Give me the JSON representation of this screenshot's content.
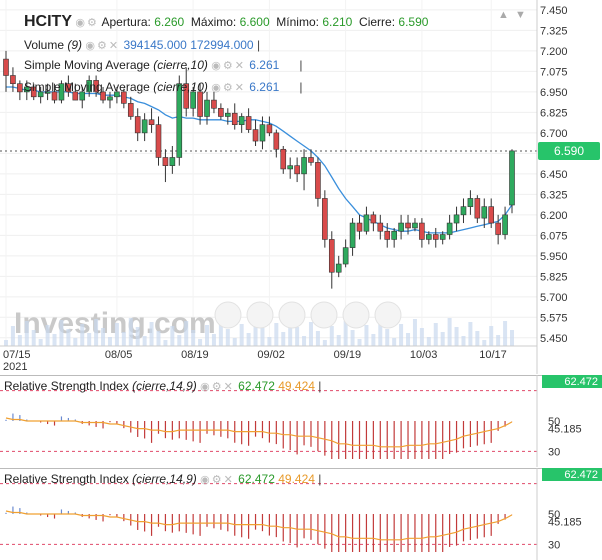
{
  "header": {
    "ticker": "HCITY",
    "open_label": "Apertura:",
    "open": "6.260",
    "high_label": "Máximo:",
    "high": "6.600",
    "low_label": "Mínimo:",
    "low": "6.210",
    "close_label": "Cierre:",
    "close": "6.590"
  },
  "volume": {
    "label": "Volume",
    "param": "(9)",
    "v1": "394145.000",
    "v2": "172994.000"
  },
  "sma1": {
    "label": "Simple Moving Average",
    "param": "(cierre,10)",
    "value": "6.261"
  },
  "sma2": {
    "label": "Simple Moving Average",
    "param": "(cierre,10)",
    "value": "6.261"
  },
  "rsi1": {
    "label": "Relative Strength Index",
    "param": "(cierre,14,9)",
    "v1": "62.472",
    "v2": "49.424",
    "badge": "62.472",
    "ticks": [
      "50",
      "45.185",
      "30"
    ]
  },
  "rsi2": {
    "label": "Relative Strength Index",
    "param": "(cierre,14,9)",
    "v1": "62.472",
    "v2": "49.424",
    "badge": "62.472",
    "ticks": [
      "50",
      "45.185",
      "30"
    ]
  },
  "price_badge": "6.590",
  "watermark": "Investing.com",
  "icons": [
    "eye-icon",
    "gear-icon",
    "close-icon",
    "arrow-up-icon",
    "arrow-down-icon"
  ],
  "colors": {
    "up": "#2eaa5e",
    "down": "#d94b4b",
    "sma": "#3a8fdc",
    "rsi_signal": "#f0a030",
    "badge": "#27c46a"
  },
  "chart_data": {
    "type": "candlestick",
    "y_ticks": [
      "7.450",
      "7.325",
      "7.200",
      "7.075",
      "6.950",
      "6.825",
      "6.700",
      "6.575",
      "6.450",
      "6.325",
      "6.200",
      "6.075",
      "5.950",
      "5.825",
      "5.700",
      "5.575",
      "5.450"
    ],
    "x_ticks": [
      "07/15",
      "08/05",
      "08/19",
      "09/02",
      "09/19",
      "10/03",
      "10/17"
    ],
    "x_year": "2021",
    "ylim": [
      5.4,
      7.48
    ],
    "candles": [
      [
        7.15,
        7.2,
        6.95,
        7.05
      ],
      [
        7.05,
        7.1,
        6.95,
        7.0
      ],
      [
        7.0,
        7.02,
        6.9,
        6.95
      ],
      [
        6.95,
        7.02,
        6.9,
        6.98
      ],
      [
        6.98,
        7.0,
        6.9,
        6.92
      ],
      [
        6.92,
        6.98,
        6.88,
        6.95
      ],
      [
        6.95,
        7.0,
        6.9,
        6.95
      ],
      [
        6.95,
        7.0,
        6.88,
        6.9
      ],
      [
        6.9,
        7.02,
        6.88,
        7.0
      ],
      [
        7.0,
        7.05,
        6.92,
        6.95
      ],
      [
        6.95,
        7.0,
        6.9,
        6.9
      ],
      [
        6.9,
        6.98,
        6.85,
        6.95
      ],
      [
        6.95,
        7.05,
        6.92,
        7.02
      ],
      [
        7.02,
        7.05,
        6.92,
        6.95
      ],
      [
        6.95,
        6.98,
        6.88,
        6.9
      ],
      [
        6.9,
        6.95,
        6.85,
        6.92
      ],
      [
        6.92,
        6.98,
        6.88,
        6.95
      ],
      [
        6.95,
        6.97,
        6.85,
        6.88
      ],
      [
        6.88,
        6.92,
        6.78,
        6.8
      ],
      [
        6.8,
        6.85,
        6.65,
        6.7
      ],
      [
        6.7,
        6.82,
        6.65,
        6.78
      ],
      [
        6.78,
        6.85,
        6.7,
        6.75
      ],
      [
        6.75,
        6.8,
        6.5,
        6.55
      ],
      [
        6.55,
        6.6,
        6.4,
        6.5
      ],
      [
        6.5,
        6.62,
        6.45,
        6.55
      ],
      [
        6.55,
        7.05,
        6.5,
        7.0
      ],
      [
        7.0,
        7.1,
        6.8,
        6.85
      ],
      [
        6.85,
        6.98,
        6.8,
        6.95
      ],
      [
        6.95,
        7.0,
        6.75,
        6.8
      ],
      [
        6.8,
        6.95,
        6.75,
        6.9
      ],
      [
        6.9,
        6.95,
        6.82,
        6.85
      ],
      [
        6.85,
        6.88,
        6.78,
        6.8
      ],
      [
        6.8,
        6.85,
        6.75,
        6.82
      ],
      [
        6.82,
        6.88,
        6.72,
        6.75
      ],
      [
        6.75,
        6.82,
        6.7,
        6.8
      ],
      [
        6.8,
        6.85,
        6.7,
        6.72
      ],
      [
        6.72,
        6.78,
        6.62,
        6.65
      ],
      [
        6.65,
        6.8,
        6.6,
        6.75
      ],
      [
        6.75,
        6.8,
        6.68,
        6.7
      ],
      [
        6.7,
        6.72,
        6.55,
        6.6
      ],
      [
        6.6,
        6.62,
        6.45,
        6.48
      ],
      [
        6.48,
        6.55,
        6.42,
        6.5
      ],
      [
        6.5,
        6.55,
        6.4,
        6.45
      ],
      [
        6.45,
        6.6,
        6.35,
        6.55
      ],
      [
        6.55,
        6.6,
        6.5,
        6.52
      ],
      [
        6.52,
        6.55,
        6.25,
        6.3
      ],
      [
        6.3,
        6.35,
        6.0,
        6.05
      ],
      [
        6.05,
        6.1,
        5.75,
        5.85
      ],
      [
        5.85,
        5.95,
        5.82,
        5.9
      ],
      [
        5.9,
        6.05,
        5.88,
        6.0
      ],
      [
        6.0,
        6.18,
        5.95,
        6.15
      ],
      [
        6.15,
        6.2,
        6.05,
        6.1
      ],
      [
        6.1,
        6.25,
        6.08,
        6.2
      ],
      [
        6.2,
        6.22,
        6.1,
        6.15
      ],
      [
        6.15,
        6.2,
        6.05,
        6.1
      ],
      [
        6.1,
        6.15,
        6.0,
        6.05
      ],
      [
        6.05,
        6.12,
        6.0,
        6.1
      ],
      [
        6.1,
        6.2,
        6.05,
        6.15
      ],
      [
        6.15,
        6.2,
        6.08,
        6.12
      ],
      [
        6.12,
        6.18,
        6.1,
        6.15
      ],
      [
        6.15,
        6.18,
        6.0,
        6.05
      ],
      [
        6.05,
        6.1,
        6.02,
        6.08
      ],
      [
        6.08,
        6.12,
        6.0,
        6.05
      ],
      [
        6.05,
        6.1,
        6.02,
        6.08
      ],
      [
        6.08,
        6.2,
        6.05,
        6.15
      ],
      [
        6.15,
        6.25,
        6.1,
        6.2
      ],
      [
        6.2,
        6.3,
        6.15,
        6.25
      ],
      [
        6.25,
        6.35,
        6.2,
        6.3
      ],
      [
        6.3,
        6.32,
        6.15,
        6.18
      ],
      [
        6.18,
        6.3,
        6.12,
        6.25
      ],
      [
        6.25,
        6.3,
        6.12,
        6.15
      ],
      [
        6.15,
        6.2,
        6.02,
        6.08
      ],
      [
        6.08,
        6.25,
        6.05,
        6.2
      ],
      [
        6.26,
        6.6,
        6.21,
        6.59
      ]
    ],
    "sma": [
      6.98,
      6.98,
      6.97,
      6.96,
      6.96,
      6.95,
      6.95,
      6.95,
      6.95,
      6.95,
      6.94,
      6.94,
      6.94,
      6.94,
      6.93,
      6.93,
      6.93,
      6.92,
      6.91,
      6.89,
      6.88,
      6.86,
      6.84,
      6.81,
      6.79,
      6.8,
      6.79,
      6.79,
      6.78,
      6.78,
      6.78,
      6.78,
      6.77,
      6.77,
      6.77,
      6.78,
      6.78,
      6.77,
      6.76,
      6.74,
      6.71,
      6.68,
      6.65,
      6.62,
      6.59,
      6.55,
      6.5,
      6.43,
      6.36,
      6.3,
      6.25,
      6.2,
      6.18,
      6.16,
      6.14,
      6.12,
      6.11,
      6.1,
      6.1,
      6.11,
      6.1,
      6.09,
      6.09,
      6.09,
      6.09,
      6.1,
      6.11,
      6.12,
      6.13,
      6.14,
      6.15,
      6.16,
      6.2,
      6.261
    ],
    "rsi": {
      "ylim": [
        25,
        75
      ],
      "levels": [
        30,
        50,
        70
      ],
      "signal": [
        52,
        51,
        51,
        50,
        50,
        50,
        50,
        50,
        50,
        50,
        50,
        49,
        49,
        49,
        49,
        48,
        48,
        47,
        46,
        45,
        45,
        44,
        44,
        43,
        43,
        44,
        44,
        44,
        44,
        44,
        44,
        44,
        44,
        43,
        43,
        43,
        43,
        43,
        42,
        42,
        41,
        41,
        40,
        40,
        40,
        39,
        38,
        37,
        35,
        35,
        34,
        34,
        34,
        34,
        33,
        33,
        33,
        33,
        34,
        34,
        34,
        35,
        35,
        36,
        37,
        38,
        40,
        41,
        42,
        43,
        44,
        45,
        47,
        49.424
      ]
    }
  }
}
